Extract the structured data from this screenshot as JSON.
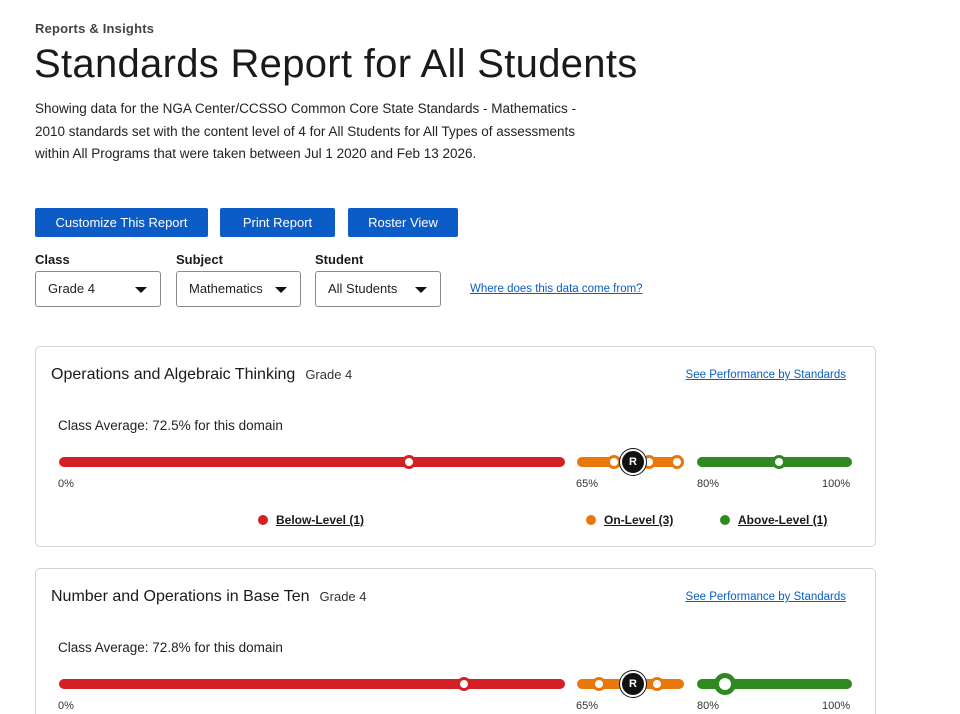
{
  "breadcrumb": "Reports & Insights",
  "title": "Standards Report for All Students",
  "description": "Showing data for the NGA Center/CCSSO Common Core State Standards - Mathematics - 2010 standards set with the content level of 4 for All Students for All Types of assessments within All Programs that were taken between Jul 1 2020 and Feb 13 2026.",
  "buttons": {
    "customize": "Customize This Report",
    "print": "Print Report",
    "roster": "Roster View"
  },
  "filters": {
    "class": {
      "label": "Class",
      "value": "Grade 4"
    },
    "subject": {
      "label": "Subject",
      "value": "Mathematics"
    },
    "student": {
      "label": "Student",
      "value": "All Students"
    }
  },
  "data_source_link": "Where does this data come from?",
  "colors": {
    "primary": "#0b5cc7",
    "below_level": "#d32027",
    "on_level": "#e8780c",
    "above_level": "#2e8a1e"
  },
  "icons": {
    "avg_marker": "renaissance-logo-icon",
    "dropdown": "chevron-down-icon"
  },
  "avg_marker_glyph": "R",
  "domains": [
    {
      "name": "Operations and Algebraic Thinking",
      "grade": "Grade 4",
      "link": "See Performance by Standards",
      "class_average": "Class Average: 72.5% for this domain",
      "ticks": {
        "zero": "0%",
        "on_start": "65%",
        "above_start": "80%",
        "max": "100%"
      },
      "legend": {
        "below": "Below-Level (1)",
        "on": "On-Level (3)",
        "above": "Above-Level (1)"
      }
    },
    {
      "name": "Number and Operations in Base Ten",
      "grade": "Grade 4",
      "link": "See Performance by Standards",
      "class_average": "Class Average: 72.8% for this domain",
      "ticks": {
        "zero": "0%",
        "on_start": "65%",
        "above_start": "80%",
        "max": "100%"
      }
    }
  ]
}
